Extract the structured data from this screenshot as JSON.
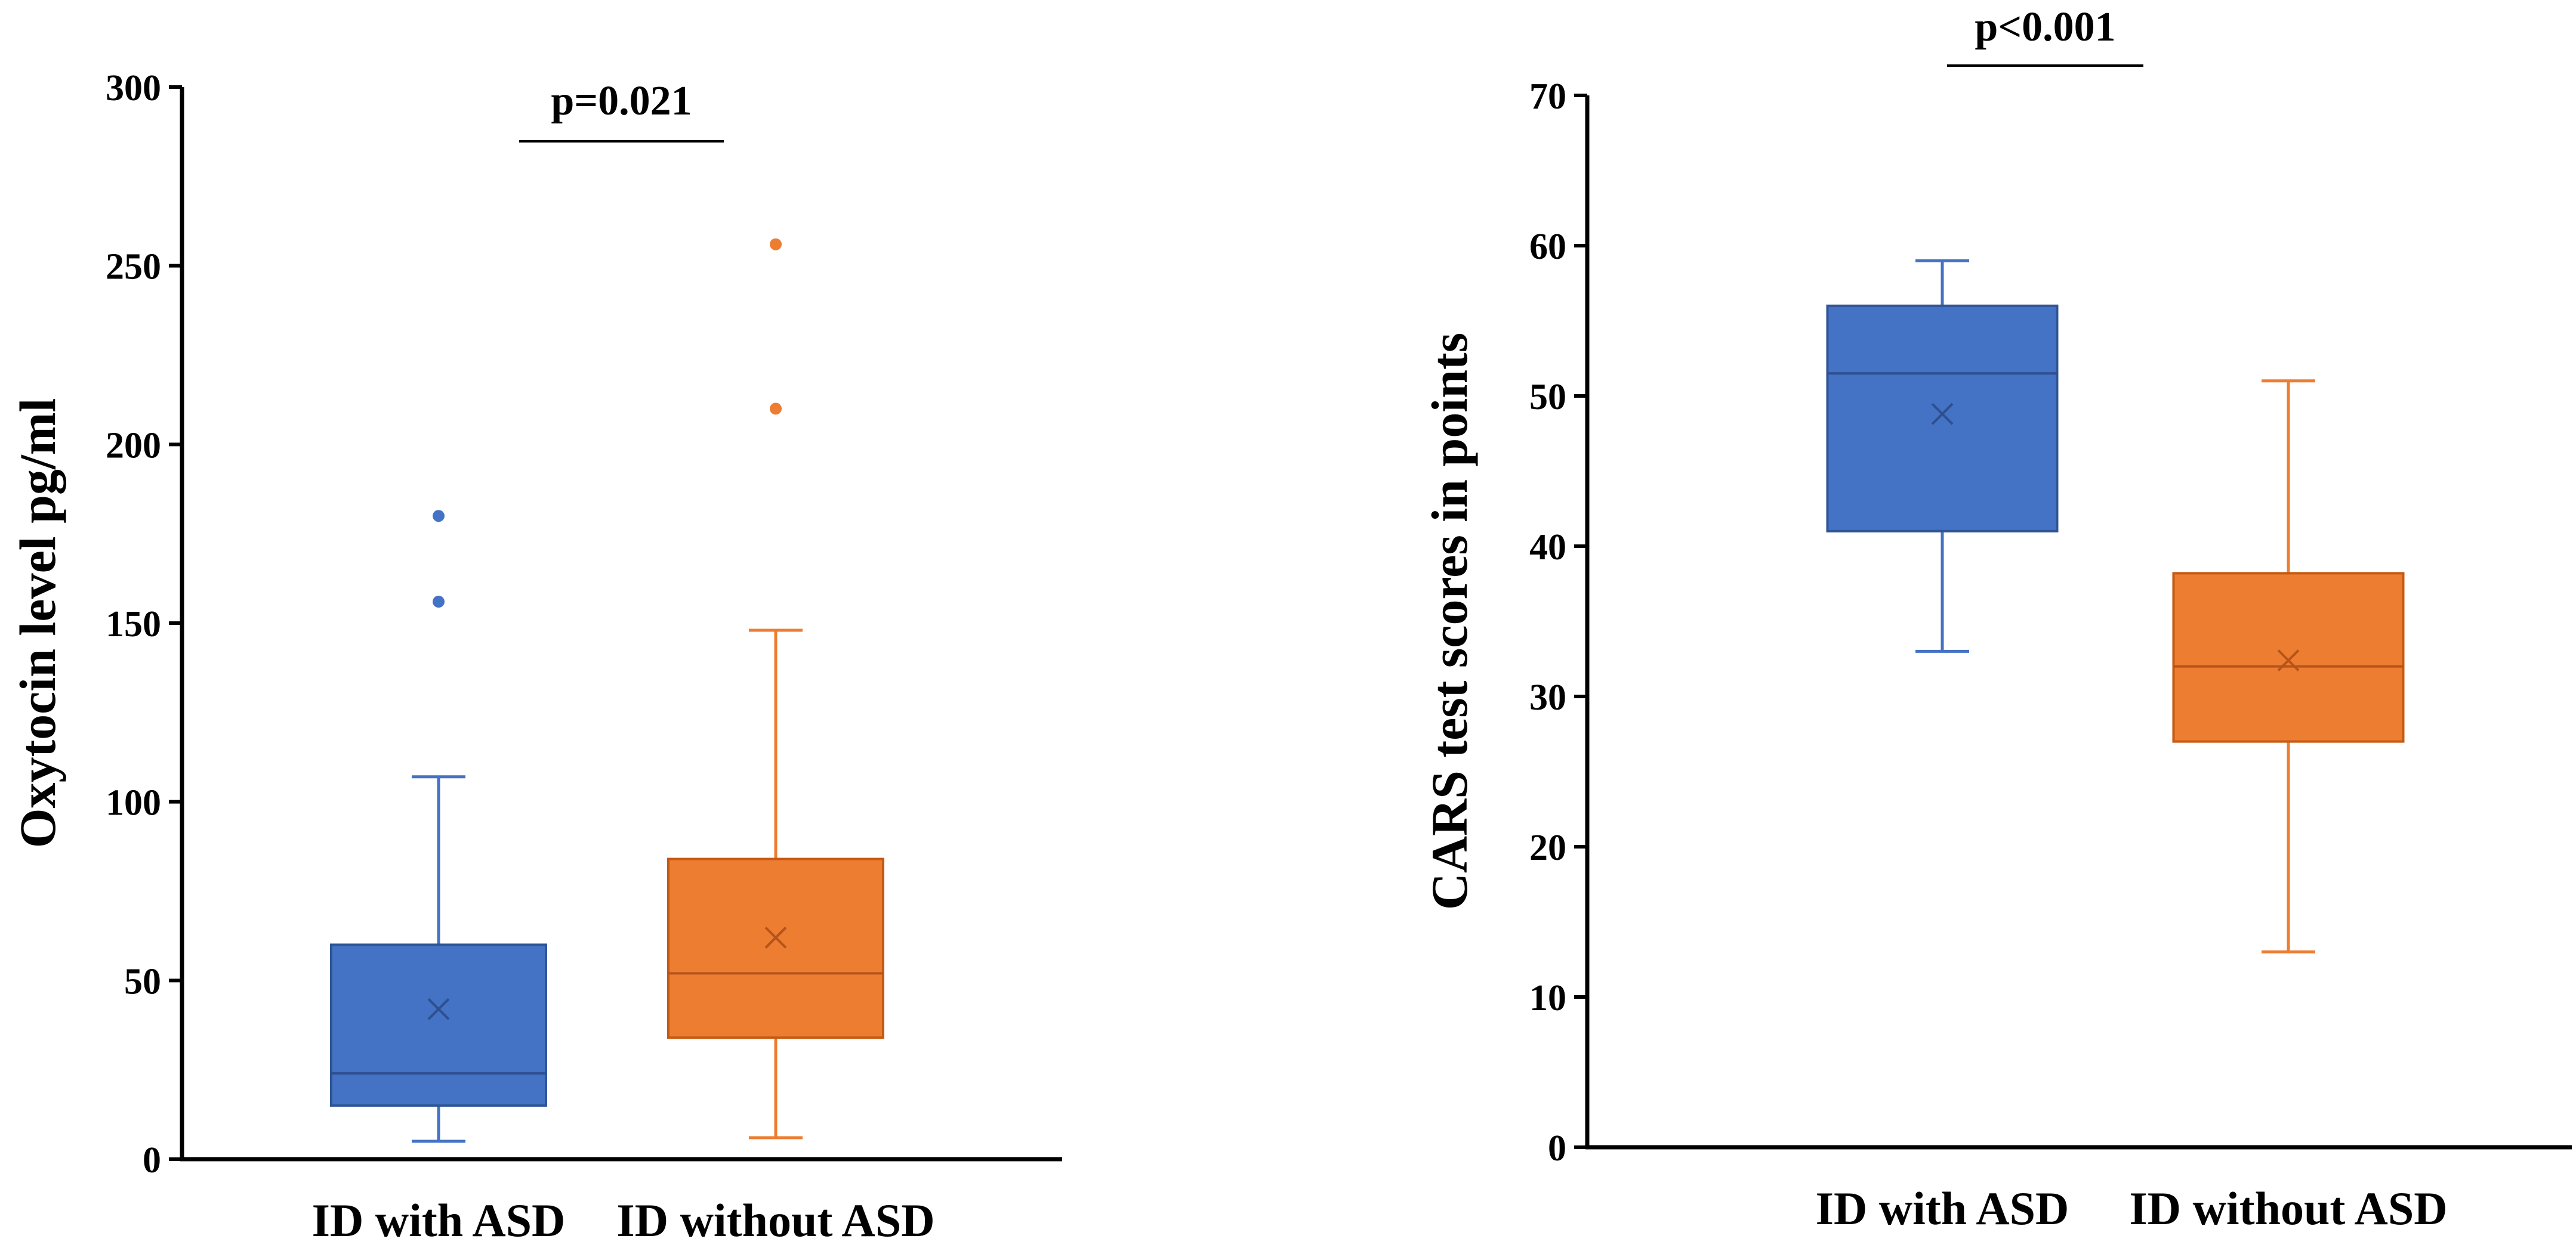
{
  "chart_data": [
    {
      "type": "box",
      "title": "",
      "xlabel": "",
      "ylabel": "Oxytocin level pg/ml",
      "ylim": [
        0,
        300
      ],
      "yticks": [
        0,
        50,
        100,
        150,
        200,
        250,
        300
      ],
      "categories": [
        "ID with ASD",
        "ID without ASD"
      ],
      "series": [
        {
          "name": "ID with ASD",
          "color": "#4472C4",
          "min": 5,
          "q1": 15,
          "median": 24,
          "q3": 60,
          "max": 107,
          "mean": 42,
          "outliers": [
            156,
            180
          ]
        },
        {
          "name": "ID without ASD",
          "color": "#ED7D31",
          "min": 6,
          "q1": 34,
          "median": 52,
          "q3": 84,
          "max": 148,
          "mean": 62,
          "outliers": [
            210,
            256
          ]
        }
      ],
      "annotation": {
        "text": "p=0.021",
        "between": [
          "ID with ASD",
          "ID without ASD"
        ]
      }
    },
    {
      "type": "box",
      "title": "",
      "xlabel": "",
      "ylabel": "CARS test scores in points",
      "ylim": [
        0,
        70
      ],
      "yticks": [
        0,
        10,
        20,
        30,
        40,
        50,
        60,
        70
      ],
      "categories": [
        "ID with ASD",
        "ID without ASD"
      ],
      "series": [
        {
          "name": "ID with ASD",
          "color": "#4472C4",
          "min": 33,
          "q1": 41,
          "median": 51.5,
          "q3": 56,
          "max": 59,
          "mean": 48.8,
          "outliers": []
        },
        {
          "name": "ID without ASD",
          "color": "#ED7D31",
          "min": 13,
          "q1": 27,
          "median": 32,
          "q3": 38.2,
          "max": 51,
          "mean": 32.4,
          "outliers": []
        }
      ],
      "annotation": {
        "text": "p<0.001",
        "between": [
          "ID with ASD",
          "ID without ASD"
        ]
      }
    }
  ]
}
